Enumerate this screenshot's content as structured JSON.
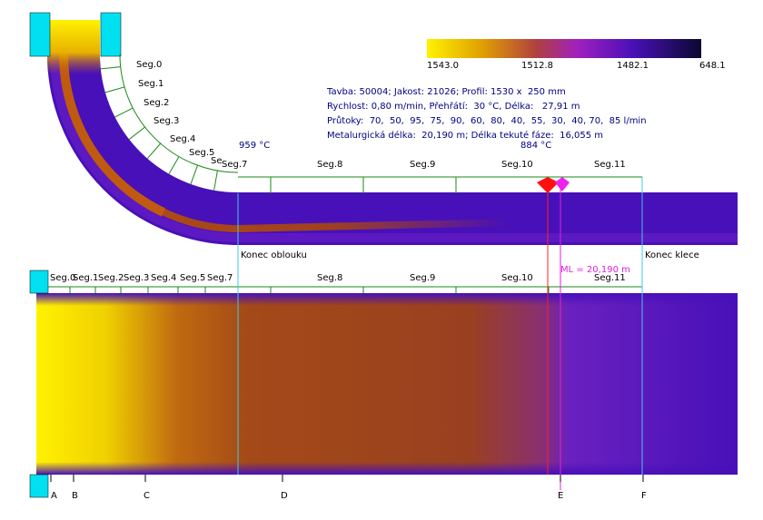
{
  "colorbar": {
    "labels": [
      "1543.0",
      "1512.8",
      "1482.1",
      "648.1"
    ]
  },
  "info": {
    "lines": [
      "Tavba: 50004; Jakost: 21026; Profil: 1530 x  250 mm",
      "Rychlost: 0,80 m/min, Přehřátí:  30 °C, Délka:   27,91 m",
      "Průtoky:  70,  50,  95,  75,  90,  60,  80,  40,  55,  30,  40, 70,  85 l/min",
      "Metalurgická délka:  20,190 m; Délka tekuté fáze:  16,055 m"
    ]
  },
  "top_view": {
    "arc_segments": [
      "Seg.0",
      "Seg.1",
      "Seg.2",
      "Seg.3",
      "Seg.4",
      "Seg.5",
      "Se"
    ],
    "segments": [
      "Seg.7",
      "Seg.8",
      "Seg.9",
      "Seg.10",
      "Seg.11"
    ],
    "temperatures": [
      "959 °C",
      "884 °C"
    ],
    "labels": [
      "Konec oblouku",
      "Konec klece"
    ]
  },
  "bottom_view": {
    "segments": [
      "Seg.0",
      "Seg.1",
      "Seg.2",
      "Seg.3",
      "Seg.4",
      "Seg.5",
      "Seg.7",
      "Seg.8",
      "Seg.9",
      "Seg.10",
      "Seg.11"
    ],
    "ml_label": "ML = 20,190 m",
    "axis_labels": [
      "A",
      "B",
      "C",
      "D",
      "E",
      "F"
    ]
  }
}
